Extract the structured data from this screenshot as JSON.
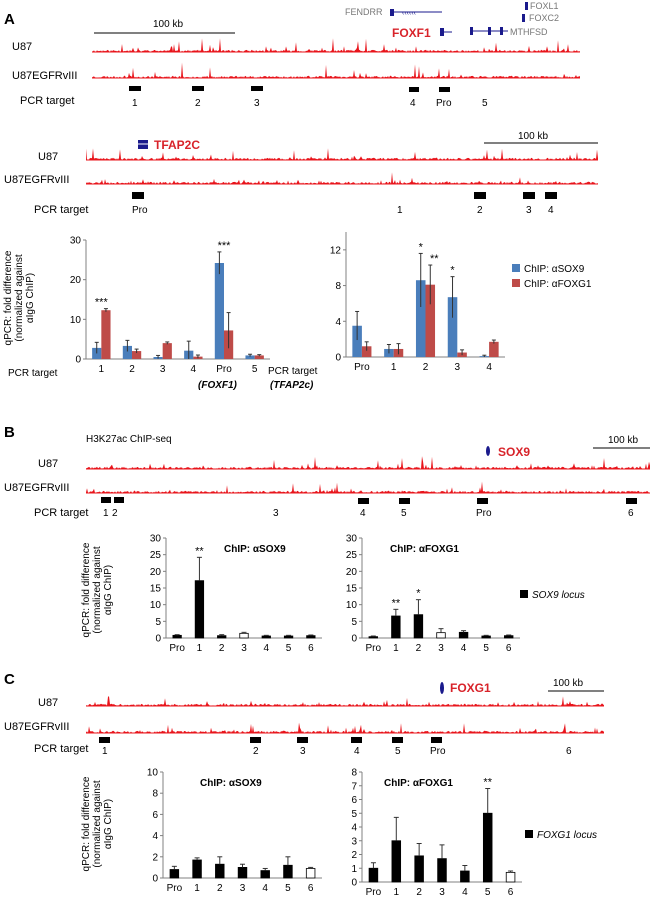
{
  "panels": {
    "A": {
      "letter": "A",
      "genome": [
        {
          "id": "A1",
          "scale_label": "100 kb",
          "tracks": [
            "U87",
            "U87EGFRvIII"
          ],
          "highlight_gene": "FOXF1",
          "other_genes": [
            "FENDRR",
            "FOXL1",
            "FOXC2",
            "MTHFSD"
          ],
          "pcr_label": "PCR target",
          "pcr_targets": [
            "1",
            "2",
            "3",
            "4",
            "Pro",
            "5"
          ]
        },
        {
          "id": "A2",
          "scale_label": "100 kb",
          "tracks": [
            "U87",
            "U87EGFRvIII"
          ],
          "highlight_gene": "TFAP2C",
          "other_genes": [],
          "pcr_label": "PCR target",
          "pcr_targets": [
            "Pro",
            "1",
            "2",
            "3",
            "4"
          ]
        }
      ]
    },
    "B": {
      "letter": "B",
      "genome_title": "H3K27ac ChIP-seq",
      "scale_label": "100 kb",
      "tracks": [
        "U87",
        "U87EGFRvIII"
      ],
      "highlight_gene": "SOX9",
      "pcr_label": "PCR target",
      "pcr_targets": [
        "1",
        "2",
        "3",
        "4",
        "5",
        "Pro",
        "6"
      ]
    },
    "C": {
      "letter": "C",
      "scale_label": "100 kb",
      "tracks": [
        "U87",
        "U87EGFRvIII"
      ],
      "highlight_gene": "FOXG1",
      "pcr_label": "PCR target",
      "pcr_targets": [
        "1",
        "2",
        "3",
        "4",
        "5",
        "Pro",
        "6"
      ]
    }
  },
  "colors": {
    "sox9_series": "#4a7ebb",
    "foxg1_series": "#be4b48",
    "track": "#e8141b",
    "gene_label": "#d8232a",
    "gene_glyph": "#1a1a8c",
    "black_bar": "#000000",
    "open_bar": "#ffffff"
  },
  "chart_data": [
    {
      "id": "A-FOXF1",
      "type": "bar",
      "ylabel": "qPCR: fold difference\n(normalized against\nαIgG ChIP)",
      "xlabel_prefix": "PCR target",
      "locus_label": "(FOXF1)",
      "categories": [
        "1",
        "2",
        "3",
        "4",
        "Pro",
        "5"
      ],
      "ylim": [
        0,
        30
      ],
      "yticks": [
        0,
        10,
        20,
        30
      ],
      "series": [
        {
          "name": "ChIP: αSOX9",
          "values": [
            2.8,
            3.3,
            0.5,
            2.1,
            24.2,
            0.9
          ],
          "errors": [
            1.4,
            1.4,
            0.4,
            2.4,
            2.8,
            0.3
          ]
        },
        {
          "name": "ChIP: αFOXG1",
          "values": [
            12.3,
            2.0,
            4.0,
            0.6,
            7.2,
            0.9
          ],
          "errors": [
            0.4,
            0.5,
            0.3,
            0.4,
            4.5,
            0.2
          ]
        }
      ],
      "annotations": [
        {
          "category": "1",
          "text": "***"
        },
        {
          "category": "Pro",
          "text": "***"
        }
      ]
    },
    {
      "id": "A-TFAP2c",
      "type": "bar",
      "xlabel_prefix": "PCR target",
      "locus_label": "(TFAP2c)",
      "categories": [
        "Pro",
        "1",
        "2",
        "3",
        "4"
      ],
      "ylim": [
        0,
        14
      ],
      "yticks": [
        0,
        4,
        8,
        12
      ],
      "series": [
        {
          "name": "ChIP: αSOX9",
          "values": [
            3.5,
            0.9,
            8.6,
            6.7,
            0.1
          ],
          "errors": [
            1.6,
            0.5,
            3.0,
            2.3,
            0.1
          ]
        },
        {
          "name": "ChIP: αFOXG1",
          "values": [
            1.2,
            0.9,
            8.1,
            0.5,
            1.7
          ],
          "errors": [
            0.5,
            0.6,
            2.2,
            0.3,
            0.2
          ]
        }
      ],
      "annotations": [
        {
          "category": "2",
          "series": 0,
          "text": "*"
        },
        {
          "category": "2",
          "series": 1,
          "text": "**"
        },
        {
          "category": "3",
          "series": 0,
          "text": "*"
        }
      ],
      "legend": {
        "position": "right",
        "entries": [
          "ChIP: αSOX9",
          "ChIP: αFOXG1"
        ]
      }
    },
    {
      "id": "B-SOX9",
      "type": "bar",
      "title": "ChIP: αSOX9",
      "ylabel": "qPCR: fold difference\n(normalized against\nαIgG ChIP)",
      "categories": [
        "Pro",
        "1",
        "2",
        "3",
        "4",
        "5",
        "6"
      ],
      "ylim": [
        0,
        30
      ],
      "yticks": [
        0,
        5,
        10,
        15,
        20,
        25,
        30
      ],
      "series": [
        {
          "name": "SOX9 locus",
          "values": [
            0.8,
            17.2,
            0.7,
            1.4,
            0.6,
            0.6,
            0.7
          ],
          "errors": [
            0.2,
            7.0,
            0.3,
            0.3,
            0.2,
            0.2,
            0.2
          ],
          "open": [
            false,
            false,
            false,
            true,
            false,
            false,
            false
          ]
        }
      ],
      "annotations": [
        {
          "category": "1",
          "text": "**"
        }
      ]
    },
    {
      "id": "B-FOXG1",
      "type": "bar",
      "title": "ChIP: αFOXG1",
      "categories": [
        "Pro",
        "1",
        "2",
        "3",
        "4",
        "5",
        "6"
      ],
      "ylim": [
        0,
        30
      ],
      "yticks": [
        0,
        5,
        10,
        15,
        20,
        25,
        30
      ],
      "series": [
        {
          "name": "SOX9 locus",
          "values": [
            0.4,
            6.6,
            7.0,
            1.6,
            1.7,
            0.6,
            0.7
          ],
          "errors": [
            0.2,
            2.0,
            4.5,
            1.2,
            0.5,
            0.2,
            0.2
          ],
          "open": [
            false,
            false,
            false,
            true,
            false,
            false,
            false
          ]
        }
      ],
      "annotations": [
        {
          "category": "1",
          "text": "**"
        },
        {
          "category": "2",
          "text": "*"
        }
      ],
      "legend": {
        "position": "right",
        "entries": [
          "SOX9 locus"
        ]
      }
    },
    {
      "id": "C-SOX9",
      "type": "bar",
      "title": "ChIP: αSOX9",
      "ylabel": "qPCR: fold difference\n(normalized against\nαIgG ChIP)",
      "categories": [
        "Pro",
        "1",
        "2",
        "3",
        "4",
        "5",
        "6"
      ],
      "ylim": [
        0,
        10
      ],
      "yticks": [
        0,
        2,
        4,
        6,
        8,
        10
      ],
      "series": [
        {
          "name": "FOXG1 locus",
          "values": [
            0.8,
            1.7,
            1.3,
            1.0,
            0.7,
            1.2,
            0.9
          ],
          "errors": [
            0.3,
            0.2,
            0.7,
            0.3,
            0.2,
            0.8,
            0.1
          ],
          "open": [
            false,
            false,
            false,
            false,
            false,
            false,
            true
          ]
        }
      ]
    },
    {
      "id": "C-FOXG1",
      "type": "bar",
      "title": "ChIP: αFOXG1",
      "categories": [
        "Pro",
        "1",
        "2",
        "3",
        "4",
        "5",
        "6"
      ],
      "ylim": [
        0,
        8
      ],
      "yticks": [
        0,
        1,
        2,
        3,
        4,
        5,
        6,
        7,
        8
      ],
      "series": [
        {
          "name": "FOXG1 locus",
          "values": [
            1.0,
            3.0,
            1.9,
            1.7,
            0.8,
            5.0,
            0.7
          ],
          "errors": [
            0.4,
            1.7,
            0.9,
            1.0,
            0.4,
            1.8,
            0.1
          ],
          "open": [
            false,
            false,
            false,
            false,
            false,
            false,
            true
          ]
        }
      ],
      "annotations": [
        {
          "category": "5",
          "text": "**"
        }
      ],
      "legend": {
        "position": "right",
        "entries": [
          "FOXG1 locus"
        ]
      }
    }
  ]
}
